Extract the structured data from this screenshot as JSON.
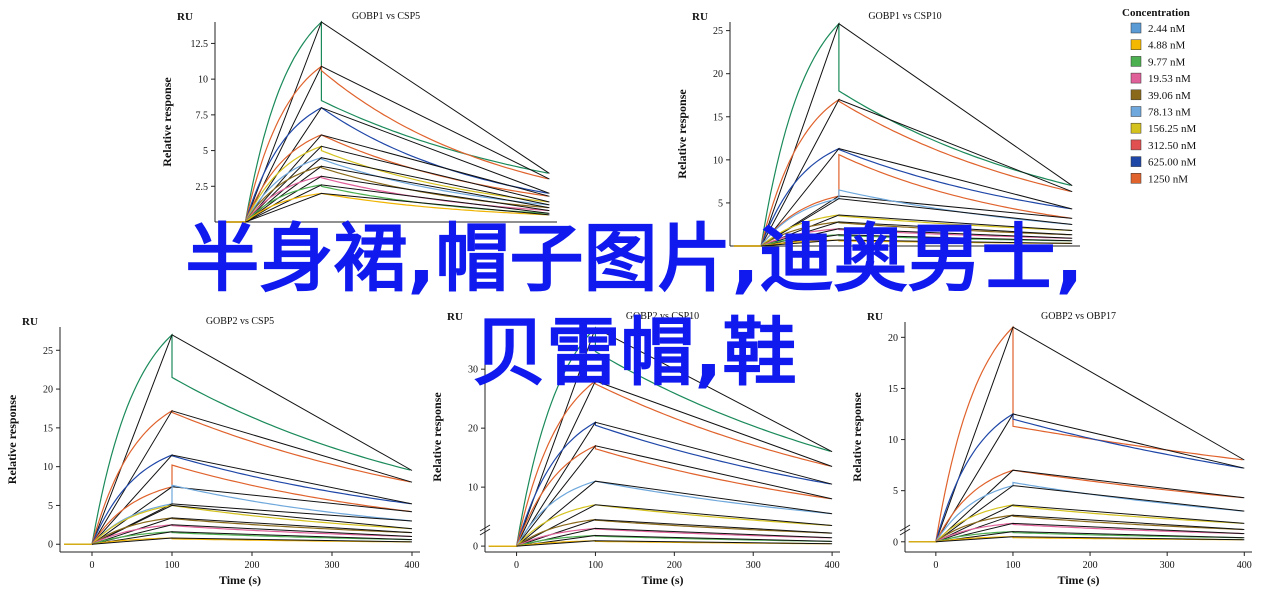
{
  "overlay": {
    "line1": "半身裙,帽子图片,迪奥男士,",
    "line2": "贝雷帽,鞋",
    "color": "#1019ee"
  },
  "chart_data": [
    {
      "type": "line",
      "title": "GOBP1 vs CSP5",
      "unit_label": "RU",
      "xlabel": "",
      "ylabel": "Relative response",
      "xlim": [
        -40,
        410
      ],
      "ylim": [
        0,
        14
      ],
      "yticks": [
        2.5,
        5,
        7.5,
        10,
        12.5
      ],
      "xticks": [],
      "y_break": false,
      "series": [
        {
          "color": "#1a8a5a",
          "assoc_peak": 14.0,
          "dissoc_start": 8.5,
          "dissoc_end": 3.4
        },
        {
          "color": "#e0622c",
          "assoc_peak": 10.9,
          "dissoc_start": 10.6,
          "dissoc_end": 3.0
        },
        {
          "color": "#1f47a8",
          "assoc_peak": 8.0,
          "dissoc_start": 8.0,
          "dissoc_end": 2.0
        },
        {
          "color": "#e0622c",
          "assoc_peak": 6.1,
          "dissoc_start": 6.1,
          "dissoc_end": 1.8
        },
        {
          "color": "#d4c21f",
          "assoc_peak": 5.3,
          "dissoc_start": 5.0,
          "dissoc_end": 1.4
        },
        {
          "color": "#6fa8dc",
          "assoc_peak": 4.5,
          "dissoc_start": 4.4,
          "dissoc_end": 1.2
        },
        {
          "color": "#8a6a1a",
          "assoc_peak": 3.9,
          "dissoc_start": 3.8,
          "dissoc_end": 1.0
        },
        {
          "color": "#e0609a",
          "assoc_peak": 3.2,
          "dissoc_start": 3.1,
          "dissoc_end": 0.8
        },
        {
          "color": "#4caf50",
          "assoc_peak": 2.6,
          "dissoc_start": 2.5,
          "dissoc_end": 0.6
        },
        {
          "color": "#f0b400",
          "assoc_peak": 2.0,
          "dissoc_start": 2.0,
          "dissoc_end": 0.5
        }
      ]
    },
    {
      "type": "line",
      "title": "GOBP1 vs CSP10",
      "unit_label": "RU",
      "xlabel": "",
      "ylabel": "Relative response",
      "xlim": [
        -40,
        410
      ],
      "ylim": [
        0,
        26
      ],
      "yticks": [
        5,
        10,
        15,
        20,
        25
      ],
      "xticks": [],
      "y_break": false,
      "series": [
        {
          "color": "#1a8a5a",
          "assoc_peak": 25.8,
          "dissoc_start": 18.0,
          "dissoc_end": 7.0
        },
        {
          "color": "#e0622c",
          "assoc_peak": 17.0,
          "dissoc_start": 16.8,
          "dissoc_end": 6.3
        },
        {
          "color": "#1f47a8",
          "assoc_peak": 11.3,
          "dissoc_start": 11.2,
          "dissoc_end": 4.3
        },
        {
          "color": "#e0622c",
          "assoc_peak": 5.8,
          "dissoc_start": 10.6,
          "dissoc_end": 3.2
        },
        {
          "color": "#6fa8dc",
          "assoc_peak": 5.5,
          "dissoc_start": 6.5,
          "dissoc_end": 2.5
        },
        {
          "color": "#d4c21f",
          "assoc_peak": 3.6,
          "dissoc_start": 3.5,
          "dissoc_end": 1.8
        },
        {
          "color": "#8a6a1a",
          "assoc_peak": 2.8,
          "dissoc_start": 2.7,
          "dissoc_end": 1.3
        },
        {
          "color": "#e0609a",
          "assoc_peak": 2.0,
          "dissoc_start": 1.9,
          "dissoc_end": 0.9
        },
        {
          "color": "#4caf50",
          "assoc_peak": 1.3,
          "dissoc_start": 1.2,
          "dissoc_end": 0.6
        },
        {
          "color": "#f0b400",
          "assoc_peak": 0.7,
          "dissoc_start": 0.6,
          "dissoc_end": 0.3
        }
      ]
    },
    {
      "type": "line",
      "title": "GOBP2 vs CSP5",
      "unit_label": "RU",
      "xlabel": "Time (s)",
      "ylabel": "Relative response",
      "xlim": [
        -40,
        410
      ],
      "ylim": [
        -1,
        28
      ],
      "yticks": [
        0,
        5,
        10,
        15,
        20,
        25
      ],
      "xticks": [
        0,
        100,
        200,
        300,
        400
      ],
      "y_break": false,
      "series": [
        {
          "color": "#1a8a5a",
          "assoc_peak": 27.0,
          "dissoc_start": 21.5,
          "dissoc_end": 9.5
        },
        {
          "color": "#e0622c",
          "assoc_peak": 17.2,
          "dissoc_start": 17.0,
          "dissoc_end": 8.0
        },
        {
          "color": "#1f47a8",
          "assoc_peak": 11.5,
          "dissoc_start": 11.4,
          "dissoc_end": 5.2
        },
        {
          "color": "#e0622c",
          "assoc_peak": 7.4,
          "dissoc_start": 10.2,
          "dissoc_end": 4.2
        },
        {
          "color": "#6fa8dc",
          "assoc_peak": 5.2,
          "dissoc_start": 7.6,
          "dissoc_end": 3.0
        },
        {
          "color": "#d4c21f",
          "assoc_peak": 5.0,
          "dissoc_start": 5.0,
          "dissoc_end": 2.0
        },
        {
          "color": "#8a6a1a",
          "assoc_peak": 3.4,
          "dissoc_start": 3.3,
          "dissoc_end": 1.5
        },
        {
          "color": "#e0609a",
          "assoc_peak": 2.5,
          "dissoc_start": 2.4,
          "dissoc_end": 1.0
        },
        {
          "color": "#4caf50",
          "assoc_peak": 1.6,
          "dissoc_start": 1.5,
          "dissoc_end": 0.6
        },
        {
          "color": "#f0b400",
          "assoc_peak": 0.8,
          "dissoc_start": 0.7,
          "dissoc_end": 0.3
        }
      ]
    },
    {
      "type": "line",
      "title": "GOBP2 vs CSP10",
      "unit_label": "RU",
      "xlabel": "Time (s)",
      "ylabel": "Relative response",
      "xlim": [
        -40,
        410
      ],
      "ylim": [
        -1,
        38
      ],
      "yticks": [
        0,
        10,
        20,
        30
      ],
      "xticks": [
        0,
        100,
        200,
        300,
        400
      ],
      "y_break": true,
      "series": [
        {
          "color": "#1a8a5a",
          "assoc_peak": 37.0,
          "dissoc_start": 33.0,
          "dissoc_end": 16.0
        },
        {
          "color": "#e0622c",
          "assoc_peak": 28.0,
          "dissoc_start": 27.5,
          "dissoc_end": 13.5
        },
        {
          "color": "#1f47a8",
          "assoc_peak": 21.0,
          "dissoc_start": 20.5,
          "dissoc_end": 10.5
        },
        {
          "color": "#e0622c",
          "assoc_peak": 17.0,
          "dissoc_start": 16.5,
          "dissoc_end": 8.0
        },
        {
          "color": "#6fa8dc",
          "assoc_peak": 11.0,
          "dissoc_start": 11.0,
          "dissoc_end": 5.5
        },
        {
          "color": "#d4c21f",
          "assoc_peak": 7.0,
          "dissoc_start": 7.0,
          "dissoc_end": 3.5
        },
        {
          "color": "#8a6a1a",
          "assoc_peak": 4.5,
          "dissoc_start": 4.4,
          "dissoc_end": 2.2
        },
        {
          "color": "#e0609a",
          "assoc_peak": 3.0,
          "dissoc_start": 2.9,
          "dissoc_end": 1.4
        },
        {
          "color": "#4caf50",
          "assoc_peak": 1.8,
          "dissoc_start": 1.7,
          "dissoc_end": 0.8
        },
        {
          "color": "#f0b400",
          "assoc_peak": 0.9,
          "dissoc_start": 0.8,
          "dissoc_end": 0.4
        }
      ]
    },
    {
      "type": "line",
      "title": "GOBP2 vs OBP17",
      "unit_label": "RU",
      "xlabel": "Time (s)",
      "ylabel": "Relative response",
      "xlim": [
        -40,
        410
      ],
      "ylim": [
        -1,
        21.5
      ],
      "yticks": [
        0,
        5,
        10,
        15,
        20
      ],
      "xticks": [
        0,
        100,
        200,
        300,
        400
      ],
      "y_break": true,
      "series": [
        {
          "color": "#e0622c",
          "assoc_peak": 21.0,
          "dissoc_start": 11.3,
          "dissoc_end": 8.0
        },
        {
          "color": "#1f47a8",
          "assoc_peak": 12.5,
          "dissoc_start": 12.0,
          "dissoc_end": 7.2
        },
        {
          "color": "#e0622c",
          "assoc_peak": 7.0,
          "dissoc_start": 7.0,
          "dissoc_end": 4.3
        },
        {
          "color": "#6fa8dc",
          "assoc_peak": 5.5,
          "dissoc_start": 5.8,
          "dissoc_end": 3.0
        },
        {
          "color": "#d4c21f",
          "assoc_peak": 3.6,
          "dissoc_start": 3.5,
          "dissoc_end": 1.8
        },
        {
          "color": "#8a6a1a",
          "assoc_peak": 2.6,
          "dissoc_start": 2.5,
          "dissoc_end": 1.2
        },
        {
          "color": "#e0609a",
          "assoc_peak": 1.8,
          "dissoc_start": 1.7,
          "dissoc_end": 0.8
        },
        {
          "color": "#4caf50",
          "assoc_peak": 1.0,
          "dissoc_start": 0.9,
          "dissoc_end": 0.4
        },
        {
          "color": "#f0b400",
          "assoc_peak": 0.5,
          "dissoc_start": 0.4,
          "dissoc_end": 0.2
        }
      ]
    }
  ],
  "legend": {
    "title": "Concentration",
    "placement": "top-right",
    "items": [
      {
        "label": "2.44 nM",
        "color": "#5b9bd5"
      },
      {
        "label": "4.88 nM",
        "color": "#f5b800"
      },
      {
        "label": "9.77 nM",
        "color": "#4caf50"
      },
      {
        "label": "19.53 nM",
        "color": "#e0609a"
      },
      {
        "label": "39.06 nM",
        "color": "#8a6a1a"
      },
      {
        "label": "78.13 nM",
        "color": "#6fa8dc"
      },
      {
        "label": "156.25 nM",
        "color": "#d4c21f"
      },
      {
        "label": "312.50 nM",
        "color": "#e05050"
      },
      {
        "label": "625.00 nM",
        "color": "#1f47a8"
      },
      {
        "label": "1250 nM",
        "color": "#e0622c"
      }
    ]
  }
}
